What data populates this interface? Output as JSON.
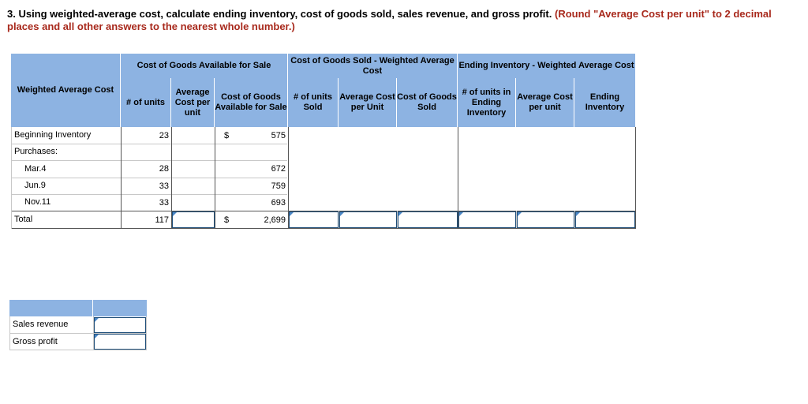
{
  "question": {
    "main": "3. Using weighted-average cost, calculate ending inventory, cost of goods sold, sales revenue, and gross profit.",
    "note": "(Round \"Average Cost per unit\" to 2 decimal places and all other answers to the nearest whole number.)"
  },
  "table": {
    "row_header": "Weighted Average Cost",
    "group_available": "Cost of Goods Available for Sale",
    "group_sold": "Cost of Goods Sold - Weighted Average Cost",
    "group_ending": "Ending Inventory - Weighted Average Cost",
    "col_units": "# of units",
    "col_avg_cost": "Average Cost per unit",
    "col_cogas": "Cost of Goods Available for Sale",
    "col_units_sold": "# of units Sold",
    "col_avg_cost_sold": "Average Cost per Unit",
    "col_cogs": "Cost of Goods Sold",
    "col_units_ending": "# of units in Ending Inventory",
    "col_avg_cost_ending": "Average Cost per unit",
    "col_ending_inventory": "Ending Inventory",
    "currency_symbol": "$",
    "rows": [
      {
        "label": "Beginning Inventory",
        "units": "23",
        "cost": "575"
      },
      {
        "label": "Purchases:",
        "units": "",
        "cost": ""
      },
      {
        "label": "Mar.4",
        "units": "28",
        "cost": "672"
      },
      {
        "label": "Jun.9",
        "units": "33",
        "cost": "759"
      },
      {
        "label": "Nov.11",
        "units": "33",
        "cost": "693"
      }
    ],
    "total": {
      "label": "Total",
      "units": "117",
      "cost": "2,699"
    }
  },
  "summary": {
    "sales_revenue_label": "Sales revenue",
    "gross_profit_label": "Gross profit"
  }
}
